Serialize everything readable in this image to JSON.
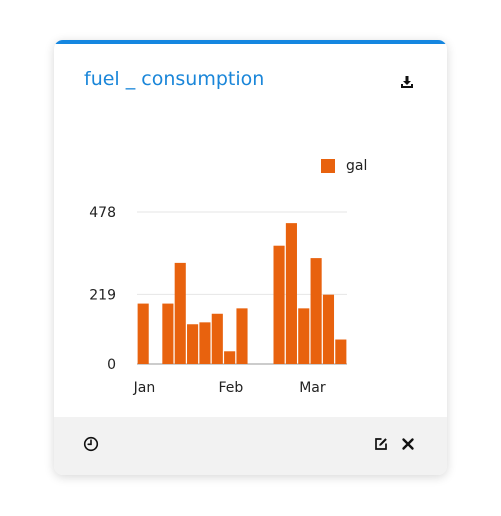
{
  "widget": {
    "title": "fuel _ consumption",
    "icons": {
      "download": "download-icon",
      "history": "history-icon",
      "edit": "edit-icon",
      "close": "close-icon"
    },
    "colors": {
      "accent": "#1586e0",
      "title": "#1a86d9",
      "bar": "#e8620e",
      "footer_bg": "#f2f2f2"
    }
  },
  "chart_data": {
    "type": "bar",
    "title": "",
    "xlabel": "",
    "ylabel": "",
    "ylim": [
      0,
      478
    ],
    "yticks": [
      0,
      219,
      478
    ],
    "xtick_labels": [
      "Jan",
      "Feb",
      "Mar"
    ],
    "legend": {
      "position": "top-right",
      "entries": [
        "gal"
      ]
    },
    "series": [
      {
        "name": "gal",
        "color": "#e8620e",
        "values": [
          190,
          0,
          190,
          318,
          125,
          131,
          158,
          40,
          175,
          0,
          0,
          372,
          443,
          175,
          333,
          218,
          77
        ]
      }
    ]
  }
}
